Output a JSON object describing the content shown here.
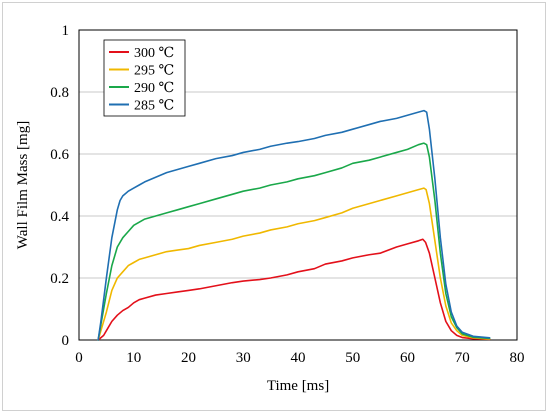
{
  "chart_data": {
    "type": "line",
    "title": "",
    "xlabel": "Time [ms]",
    "ylabel": "Wall Film Mass [mg]",
    "xlim": [
      0,
      80
    ],
    "ylim": [
      0,
      1
    ],
    "x_ticks": [
      "0",
      "10",
      "20",
      "30",
      "40",
      "50",
      "60",
      "70",
      "80"
    ],
    "y_ticks": [
      "0",
      "0.2",
      "0.4",
      "0.6",
      "0.8",
      "1"
    ],
    "grid": "horizontal",
    "legend_position": "top-left",
    "series": [
      {
        "name": "300 ℃",
        "color": "#e3101a",
        "x": [
          3.5,
          4.5,
          5,
          6,
          7,
          8,
          9,
          10,
          11,
          12,
          14,
          16,
          18,
          20,
          22,
          25,
          28,
          30,
          33,
          35,
          38,
          40,
          43,
          45,
          48,
          50,
          53,
          55,
          58,
          60,
          62,
          62.8,
          63.3,
          64,
          65,
          66,
          67,
          68,
          69,
          70,
          72,
          75
        ],
        "y": [
          0,
          0.015,
          0.03,
          0.06,
          0.08,
          0.095,
          0.105,
          0.12,
          0.13,
          0.135,
          0.145,
          0.15,
          0.155,
          0.16,
          0.165,
          0.175,
          0.185,
          0.19,
          0.195,
          0.2,
          0.21,
          0.22,
          0.23,
          0.245,
          0.255,
          0.265,
          0.275,
          0.28,
          0.3,
          0.31,
          0.32,
          0.325,
          0.315,
          0.28,
          0.2,
          0.12,
          0.06,
          0.03,
          0.015,
          0.008,
          0.004,
          0.002
        ]
      },
      {
        "name": "295 ℃",
        "color": "#f0b800",
        "x": [
          3.5,
          4,
          5,
          6,
          7,
          8,
          9,
          10,
          11,
          12,
          14,
          16,
          18,
          20,
          22,
          25,
          28,
          30,
          33,
          35,
          38,
          40,
          43,
          45,
          48,
          50,
          53,
          55,
          58,
          60,
          62,
          63,
          63.4,
          64,
          65,
          66,
          67,
          68,
          69,
          70,
          72,
          75
        ],
        "y": [
          0,
          0.03,
          0.09,
          0.16,
          0.2,
          0.22,
          0.24,
          0.25,
          0.26,
          0.265,
          0.275,
          0.285,
          0.29,
          0.295,
          0.305,
          0.315,
          0.325,
          0.335,
          0.345,
          0.355,
          0.365,
          0.375,
          0.385,
          0.395,
          0.41,
          0.425,
          0.44,
          0.45,
          0.465,
          0.475,
          0.485,
          0.49,
          0.485,
          0.44,
          0.32,
          0.2,
          0.11,
          0.055,
          0.03,
          0.015,
          0.007,
          0.003
        ]
      },
      {
        "name": "290 ℃",
        "color": "#1aa84a",
        "x": [
          3.5,
          4,
          5,
          6,
          7,
          8,
          9,
          10,
          11,
          12,
          14,
          16,
          18,
          20,
          22,
          25,
          28,
          30,
          33,
          35,
          38,
          40,
          43,
          45,
          48,
          50,
          53,
          55,
          58,
          60,
          62,
          63,
          63.5,
          64,
          65,
          66,
          67,
          68,
          69,
          70,
          72,
          75
        ],
        "y": [
          0,
          0.05,
          0.15,
          0.24,
          0.3,
          0.33,
          0.35,
          0.37,
          0.38,
          0.39,
          0.4,
          0.41,
          0.42,
          0.43,
          0.44,
          0.455,
          0.47,
          0.48,
          0.49,
          0.5,
          0.51,
          0.52,
          0.53,
          0.54,
          0.555,
          0.57,
          0.58,
          0.59,
          0.605,
          0.615,
          0.63,
          0.635,
          0.63,
          0.59,
          0.45,
          0.28,
          0.15,
          0.075,
          0.04,
          0.02,
          0.009,
          0.005
        ]
      },
      {
        "name": "285 ℃",
        "color": "#1f6fb2",
        "x": [
          3.5,
          4,
          5,
          6,
          7,
          7.5,
          8,
          9,
          10,
          11,
          12,
          14,
          16,
          18,
          20,
          22,
          25,
          28,
          30,
          33,
          35,
          38,
          40,
          43,
          45,
          48,
          50,
          53,
          55,
          58,
          60,
          62,
          63,
          63.5,
          64,
          65,
          66,
          67,
          68,
          69,
          70,
          72,
          75
        ],
        "y": [
          0,
          0.06,
          0.2,
          0.33,
          0.42,
          0.45,
          0.465,
          0.48,
          0.49,
          0.5,
          0.51,
          0.525,
          0.54,
          0.55,
          0.56,
          0.57,
          0.585,
          0.595,
          0.605,
          0.615,
          0.625,
          0.635,
          0.64,
          0.65,
          0.66,
          0.67,
          0.68,
          0.695,
          0.705,
          0.715,
          0.725,
          0.735,
          0.74,
          0.735,
          0.68,
          0.52,
          0.33,
          0.18,
          0.09,
          0.045,
          0.025,
          0.012,
          0.007
        ]
      }
    ]
  }
}
